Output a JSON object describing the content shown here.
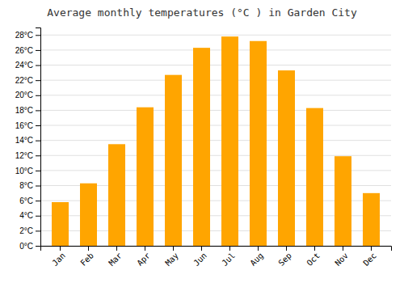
{
  "chart_data": {
    "type": "bar",
    "title": "Average monthly temperatures (°C ) in Garden City",
    "categories": [
      "Jan",
      "Feb",
      "Mar",
      "Apr",
      "May",
      "Jun",
      "Jul",
      "Aug",
      "Sep",
      "Oct",
      "Nov",
      "Dec"
    ],
    "values": [
      5.8,
      8.3,
      13.5,
      18.4,
      22.7,
      26.3,
      27.8,
      27.2,
      23.3,
      18.3,
      11.9,
      7.0
    ],
    "color": "#FFA500",
    "ylim": [
      0,
      29
    ],
    "yticks": [
      {
        "value": 0,
        "label": "0°C"
      },
      {
        "value": 2,
        "label": "2°C"
      },
      {
        "value": 4,
        "label": "4°C"
      },
      {
        "value": 6,
        "label": "6°C"
      },
      {
        "value": 8,
        "label": "8°C"
      },
      {
        "value": 10,
        "label": "10°C"
      },
      {
        "value": 12,
        "label": "12°C"
      },
      {
        "value": 14,
        "label": "14°C"
      },
      {
        "value": 16,
        "label": "16°C"
      },
      {
        "value": 18,
        "label": "18°C"
      },
      {
        "value": 20,
        "label": "20°C"
      },
      {
        "value": 22,
        "label": "22°C"
      },
      {
        "value": 24,
        "label": "24°C"
      },
      {
        "value": 26,
        "label": "26°C"
      },
      {
        "value": 28,
        "label": "28°C"
      }
    ],
    "grid": true
  }
}
